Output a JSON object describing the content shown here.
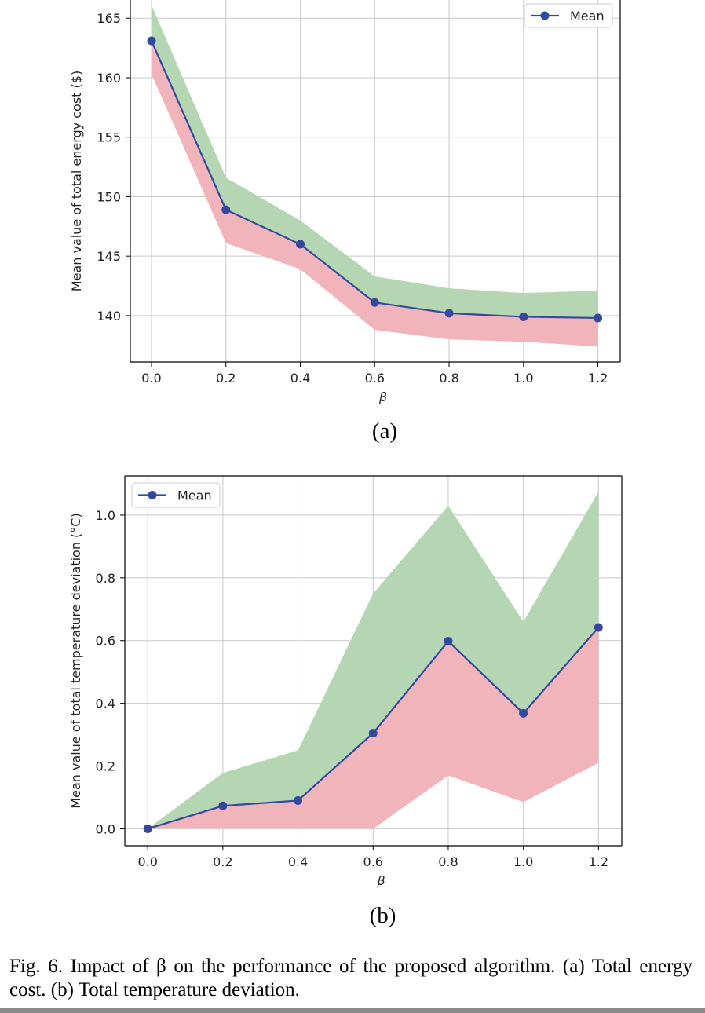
{
  "figure": {
    "caption": "Fig. 6.   Impact of β on the performance of the proposed algorithm. (a) Total energy cost. (b) Total temperature deviation.",
    "colors": {
      "mean": "#3349a0",
      "upper_band": "#b5d6b2",
      "lower_band": "#f1b4ba",
      "grid": "#c8c8c8"
    }
  },
  "chart_data": [
    {
      "type": "line",
      "panel_label": "(a)",
      "xlabel": "β",
      "ylabel": "Mean value of total energy cost ($)",
      "x": [
        0.0,
        0.2,
        0.4,
        0.6,
        0.8,
        1.0,
        1.2
      ],
      "xticks": [
        "0.0",
        "0.2",
        "0.4",
        "0.6",
        "0.8",
        "1.0",
        "1.2"
      ],
      "yticks": [
        "140",
        "145",
        "150",
        "155",
        "160",
        "165"
      ],
      "xlim": [
        -0.057,
        1.26
      ],
      "ylim": [
        136.1,
        166.6
      ],
      "grid": true,
      "legend": {
        "position": "upper-right",
        "entries": [
          "Mean"
        ]
      },
      "series": [
        {
          "name": "Mean",
          "values": [
            163.1,
            148.9,
            146.0,
            141.1,
            140.2,
            139.9,
            139.8
          ]
        }
      ],
      "band_upper": [
        166.1,
        151.6,
        148.0,
        143.3,
        142.3,
        141.9,
        142.1
      ],
      "band_lower": [
        160.3,
        146.1,
        143.9,
        138.8,
        138.0,
        137.8,
        137.4
      ]
    },
    {
      "type": "line",
      "panel_label": "(b)",
      "xlabel": "β",
      "ylabel": "Mean value of total temperature deviation (°C)",
      "x": [
        0.0,
        0.2,
        0.4,
        0.6,
        0.8,
        1.0,
        1.2
      ],
      "xticks": [
        "0.0",
        "0.2",
        "0.4",
        "0.6",
        "0.8",
        "1.0",
        "1.2"
      ],
      "yticks": [
        "0.0",
        "0.2",
        "0.4",
        "0.6",
        "0.8",
        "1.0"
      ],
      "xlim": [
        -0.061,
        1.262
      ],
      "ylim": [
        -0.054,
        1.125
      ],
      "grid": true,
      "legend": {
        "position": "upper-left",
        "entries": [
          "Mean"
        ]
      },
      "series": [
        {
          "name": "Mean",
          "values": [
            0.0,
            0.073,
            0.09,
            0.305,
            0.598,
            0.368,
            0.642
          ]
        }
      ],
      "band_upper": [
        0.0,
        0.178,
        0.25,
        0.75,
        1.03,
        0.66,
        1.075
      ],
      "band_lower": [
        0.0,
        0.0,
        0.0,
        0.0,
        0.17,
        0.085,
        0.21
      ]
    }
  ]
}
